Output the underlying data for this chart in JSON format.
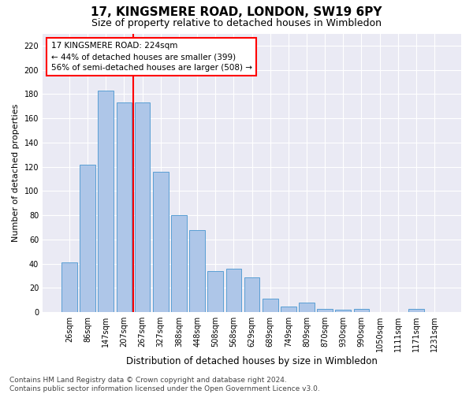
{
  "title": "17, KINGSMERE ROAD, LONDON, SW19 6PY",
  "subtitle": "Size of property relative to detached houses in Wimbledon",
  "xlabel": "Distribution of detached houses by size in Wimbledon",
  "ylabel": "Number of detached properties",
  "categories": [
    "26sqm",
    "86sqm",
    "147sqm",
    "207sqm",
    "267sqm",
    "327sqm",
    "388sqm",
    "448sqm",
    "508sqm",
    "568sqm",
    "629sqm",
    "689sqm",
    "749sqm",
    "809sqm",
    "870sqm",
    "930sqm",
    "990sqm",
    "1050sqm",
    "1111sqm",
    "1171sqm",
    "1231sqm"
  ],
  "values": [
    41,
    122,
    183,
    173,
    173,
    116,
    80,
    68,
    34,
    36,
    29,
    11,
    5,
    8,
    3,
    2,
    3,
    0,
    0,
    3,
    0
  ],
  "bar_color": "#aec6e8",
  "bar_edge_color": "#5a9fd4",
  "ref_line_x": 3.5,
  "annotation_text": "17 KINGSMERE ROAD: 224sqm\n← 44% of detached houses are smaller (399)\n56% of semi-detached houses are larger (508) →",
  "annotation_box_color": "white",
  "annotation_box_edge_color": "red",
  "ref_line_color": "red",
  "ylim": [
    0,
    230
  ],
  "yticks": [
    0,
    20,
    40,
    60,
    80,
    100,
    120,
    140,
    160,
    180,
    200,
    220
  ],
  "background_color": "#eaeaf4",
  "grid_color": "white",
  "footnote": "Contains HM Land Registry data © Crown copyright and database right 2024.\nContains public sector information licensed under the Open Government Licence v3.0.",
  "title_fontsize": 11,
  "subtitle_fontsize": 9,
  "xlabel_fontsize": 8.5,
  "ylabel_fontsize": 8,
  "tick_fontsize": 7,
  "annotation_fontsize": 7.5,
  "footnote_fontsize": 6.5
}
